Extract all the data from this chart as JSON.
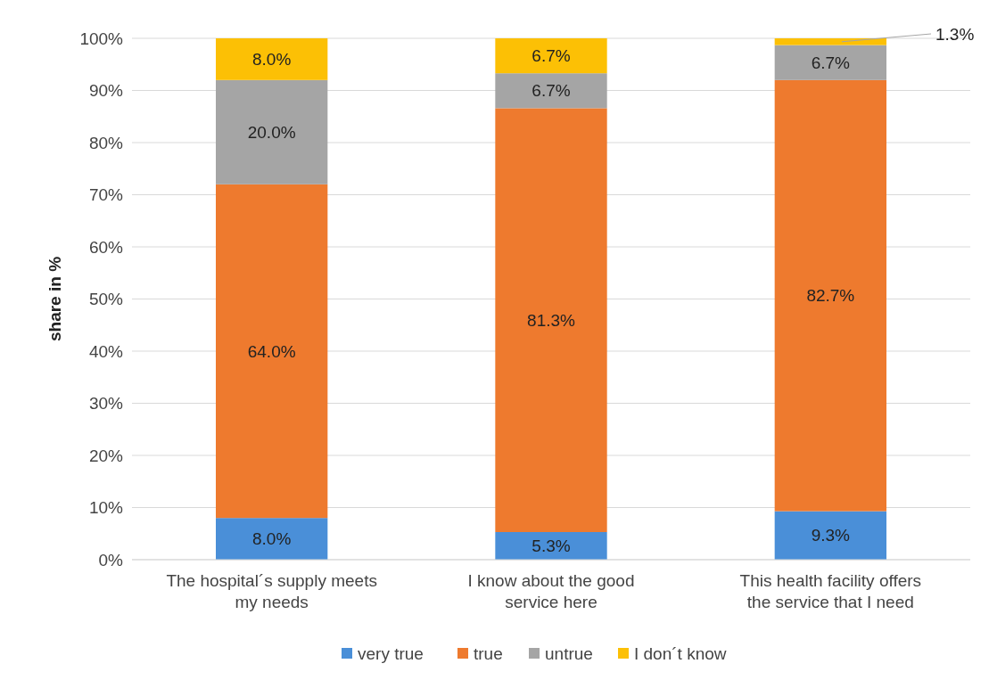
{
  "chart_data": {
    "type": "bar",
    "stacked": true,
    "ylabel": "share in %",
    "categories": [
      "The hospital´s supply meets my needs",
      "I know about the good service here",
      "This health facility offers the service that I need"
    ],
    "series": [
      {
        "name": "very true",
        "color": "#4a8fd8",
        "values": [
          8.0,
          5.3,
          9.3
        ],
        "value_labels": [
          "8.0%",
          "5.3%",
          "9.3%"
        ]
      },
      {
        "name": "true",
        "color": "#ee7a2e",
        "values": [
          64.0,
          81.3,
          82.7
        ],
        "value_labels": [
          "64.0%",
          "81.3%",
          "82.7%"
        ]
      },
      {
        "name": "untrue",
        "color": "#a5a5a5",
        "values": [
          20.0,
          6.7,
          6.7
        ],
        "value_labels": [
          "20.0%",
          "6.7%",
          "6.7%"
        ]
      },
      {
        "name": "I don´t know",
        "color": "#fcc005",
        "values": [
          8.0,
          6.7,
          1.3
        ],
        "value_labels": [
          "8.0%",
          "6.7%",
          "1.3%"
        ]
      }
    ],
    "ylim": [
      0,
      100
    ],
    "yticks": [
      {
        "value": 0,
        "label": "0%"
      },
      {
        "value": 10,
        "label": "10%"
      },
      {
        "value": 20,
        "label": "20%"
      },
      {
        "value": 30,
        "label": "30%"
      },
      {
        "value": 40,
        "label": "40%"
      },
      {
        "value": 50,
        "label": "50%"
      },
      {
        "value": 60,
        "label": "60%"
      },
      {
        "value": 70,
        "label": "70%"
      },
      {
        "value": 80,
        "label": "80%"
      },
      {
        "value": 90,
        "label": "90%"
      },
      {
        "value": 100,
        "label": "100%"
      }
    ],
    "grid": "y",
    "legend": "bottom"
  }
}
